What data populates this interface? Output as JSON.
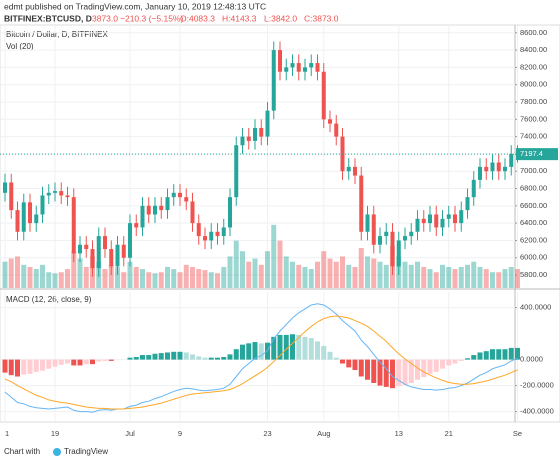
{
  "header": {
    "publisher": "edmt published on TradingView.com, January 10, 2019 12:48:13 UTC",
    "symbol": "BITFINEX:BTCUSD, D",
    "last": "3873.0",
    "change": "−210.3 (−5.15%)",
    "open": "O:4083.3",
    "high": "H:4143.3",
    "low": "L:3842.0",
    "close": "C:3873.0"
  },
  "footer": {
    "prefix": "Chart with",
    "brand": "TradingView"
  },
  "chart_data": {
    "type": "candlestick",
    "title": "Bitcoin / Dollar, D, BITFINEX",
    "volume_label": "Vol (20)",
    "categories": [
      "1",
      null,
      null,
      null,
      null,
      null,
      null,
      null,
      "19",
      null,
      null,
      null,
      null,
      null,
      null,
      null,
      null,
      null,
      null,
      null,
      "Jul",
      null,
      null,
      null,
      null,
      null,
      null,
      null,
      "9",
      null,
      null,
      null,
      null,
      null,
      null,
      null,
      null,
      null,
      null,
      null,
      null,
      null,
      "23",
      null,
      null,
      null,
      null,
      null,
      null,
      null,
      null,
      "Aug",
      null,
      null,
      null,
      null,
      null,
      null,
      null,
      null,
      null,
      null,
      null,
      "13",
      null,
      null,
      null,
      null,
      null,
      null,
      null,
      "21",
      null,
      null,
      null,
      null,
      null,
      null,
      null,
      null,
      null,
      null,
      "Se"
    ],
    "open": [
      6750,
      6870,
      6550,
      6300,
      6640,
      6400,
      6500,
      6720,
      6750,
      6770,
      6720,
      6700,
      6050,
      6150,
      6100,
      5880,
      6250,
      6100,
      5900,
      6150,
      6000,
      6400,
      6350,
      6600,
      6500,
      6600,
      6550,
      6700,
      6750,
      6700,
      6650,
      6400,
      6250,
      6200,
      6300,
      6250,
      6350,
      6700,
      7300,
      7400,
      7350,
      7500,
      7400,
      7700,
      8400,
      8150,
      8200,
      8250,
      8150,
      8200,
      8250,
      8150,
      7600,
      7550,
      7400,
      7000,
      7050,
      6950,
      6300,
      6500,
      6150,
      6250,
      6300,
      5900,
      6200,
      6250,
      6300,
      6450,
      6400,
      6500,
      6350,
      6450,
      6500,
      6400,
      6550,
      6700,
      6900,
      7050,
      7000,
      7100,
      7000,
      7050,
      7200
    ],
    "high": [
      6970,
      6970,
      6650,
      6740,
      6740,
      6600,
      6820,
      6850,
      6870,
      6870,
      6820,
      6800,
      6250,
      6250,
      6200,
      6350,
      6350,
      6200,
      6250,
      6250,
      6500,
      6500,
      6700,
      6700,
      6700,
      6700,
      6800,
      6850,
      6850,
      6800,
      6750,
      6500,
      6350,
      6400,
      6400,
      6450,
      6800,
      7400,
      7500,
      7500,
      7600,
      7600,
      7800,
      8500,
      8500,
      8300,
      8350,
      8350,
      8300,
      8350,
      8350,
      8250,
      7700,
      7650,
      7500,
      7150,
      7150,
      7050,
      6600,
      6600,
      6350,
      6400,
      6400,
      6300,
      6350,
      6400,
      6550,
      6550,
      6600,
      6600,
      6550,
      6600,
      6600,
      6650,
      6800,
      7000,
      7150,
      7150,
      7200,
      7200,
      7150,
      7300,
      7300
    ],
    "low": [
      6650,
      6450,
      6200,
      6200,
      6300,
      6300,
      6400,
      6620,
      6650,
      6620,
      6600,
      5950,
      5950,
      6000,
      5780,
      5780,
      6000,
      5800,
      5800,
      5900,
      5900,
      6250,
      6250,
      6400,
      6400,
      6450,
      6450,
      6600,
      6600,
      6550,
      6300,
      6150,
      6100,
      6100,
      6150,
      6150,
      6250,
      6600,
      7200,
      7250,
      7250,
      7300,
      7300,
      7600,
      8050,
      8050,
      8100,
      8050,
      8050,
      8100,
      8050,
      7500,
      7450,
      7300,
      6900,
      6900,
      6850,
      6200,
      6200,
      6050,
      6050,
      6150,
      5800,
      5800,
      6100,
      6150,
      6200,
      6300,
      6300,
      6250,
      6250,
      6350,
      6300,
      6300,
      6450,
      6600,
      6800,
      6900,
      6900,
      6900,
      6900,
      6950,
      7100
    ],
    "close": [
      6870,
      6550,
      6300,
      6640,
      6400,
      6500,
      6720,
      6750,
      6770,
      6720,
      6700,
      6050,
      6150,
      6100,
      5880,
      6250,
      6100,
      5900,
      6150,
      6000,
      6400,
      6350,
      6600,
      6500,
      6600,
      6550,
      6700,
      6750,
      6700,
      6650,
      6400,
      6250,
      6200,
      6300,
      6250,
      6350,
      6700,
      7300,
      7400,
      7350,
      7500,
      7400,
      7700,
      8400,
      8150,
      8200,
      8250,
      8150,
      8200,
      8250,
      8150,
      7600,
      7550,
      7400,
      7000,
      7050,
      6950,
      6300,
      6500,
      6150,
      6250,
      6300,
      5900,
      6200,
      6250,
      6300,
      6450,
      6400,
      6500,
      6350,
      6450,
      6500,
      6400,
      6550,
      6700,
      6900,
      7050,
      7000,
      7100,
      7000,
      7050,
      7200,
      7197.4
    ],
    "volume": [
      25,
      28,
      30,
      22,
      20,
      18,
      22,
      15,
      14,
      15,
      18,
      35,
      28,
      20,
      30,
      25,
      18,
      22,
      20,
      15,
      25,
      20,
      18,
      15,
      14,
      15,
      20,
      18,
      15,
      22,
      20,
      18,
      17,
      15,
      14,
      20,
      30,
      45,
      35,
      25,
      28,
      22,
      35,
      60,
      45,
      30,
      25,
      22,
      20,
      18,
      25,
      35,
      28,
      25,
      30,
      22,
      20,
      38,
      30,
      28,
      25,
      22,
      40,
      30,
      25,
      22,
      25,
      20,
      18,
      15,
      22,
      20,
      18,
      20,
      22,
      25,
      20,
      18,
      15,
      15,
      18,
      20,
      18
    ],
    "ylim": [
      5650,
      8690
    ],
    "volume_lim": [
      0,
      250
    ],
    "yticks": [
      {
        "value": 5800,
        "label": "5800.00"
      },
      {
        "value": 6000,
        "label": "6000.00"
      },
      {
        "value": 6200,
        "label": "6200.00"
      },
      {
        "value": 6400,
        "label": "6400.00"
      },
      {
        "value": 6600,
        "label": "6600.00"
      },
      {
        "value": 6800,
        "label": "6800.00"
      },
      {
        "value": 7000,
        "label": "7000.00"
      },
      {
        "value": 7200,
        "label": "7200.00"
      },
      {
        "value": 7400,
        "label": "7400.00"
      },
      {
        "value": 7600,
        "label": "7600.00"
      },
      {
        "value": 7800,
        "label": "7800.00"
      },
      {
        "value": 8000,
        "label": "8000.00"
      },
      {
        "value": 8200,
        "label": "8200.00"
      },
      {
        "value": 8400,
        "label": "8400.00"
      },
      {
        "value": 8600,
        "label": "8600.00"
      }
    ],
    "grid": true,
    "up_color": "#26a69a",
    "down_color": "#ef5350",
    "macd": {
      "title": "MACD (12, 26, close, 9)",
      "ylim": [
        -480,
        520
      ],
      "yticks": [
        {
          "value": -400,
          "label": "-400.0000"
        },
        {
          "value": -200,
          "label": "-200.0000"
        },
        {
          "value": 0,
          "label": "0.0000"
        },
        {
          "value": 400,
          "label": "400.0000"
        }
      ],
      "histogram": [
        -100,
        -120,
        -130,
        -115,
        -110,
        -95,
        -85,
        -70,
        -55,
        -40,
        -30,
        -45,
        -45,
        -35,
        -35,
        -15,
        -10,
        -10,
        0,
        0,
        15,
        20,
        35,
        35,
        45,
        50,
        55,
        60,
        60,
        55,
        40,
        25,
        15,
        15,
        15,
        20,
        40,
        80,
        115,
        125,
        135,
        125,
        130,
        175,
        190,
        190,
        195,
        190,
        175,
        165,
        140,
        105,
        60,
        15,
        -30,
        -60,
        -80,
        -130,
        -155,
        -180,
        -200,
        -210,
        -220,
        -205,
        -195,
        -180,
        -155,
        -135,
        -110,
        -95,
        -70,
        -45,
        -30,
        -10,
        10,
        35,
        55,
        65,
        80,
        80,
        80,
        90,
        90
      ],
      "macd": [
        -250,
        -290,
        -330,
        -340,
        -360,
        -370,
        -375,
        -380,
        -375,
        -370,
        -365,
        -390,
        -400,
        -400,
        -405,
        -390,
        -385,
        -390,
        -380,
        -380,
        -360,
        -350,
        -330,
        -320,
        -300,
        -285,
        -265,
        -245,
        -230,
        -220,
        -225,
        -235,
        -240,
        -235,
        -230,
        -220,
        -190,
        -130,
        -70,
        -30,
        10,
        30,
        70,
        160,
        220,
        270,
        320,
        360,
        390,
        420,
        430,
        420,
        390,
        350,
        300,
        260,
        220,
        150,
        100,
        40,
        -20,
        -70,
        -130,
        -160,
        -190,
        -210,
        -220,
        -230,
        -230,
        -235,
        -230,
        -220,
        -215,
        -200,
        -180,
        -150,
        -120,
        -100,
        -70,
        -55,
        -40,
        -10,
        10
      ],
      "signal": [
        -150,
        -170,
        -200,
        -225,
        -250,
        -275,
        -290,
        -310,
        -320,
        -330,
        -335,
        -345,
        -355,
        -365,
        -370,
        -375,
        -375,
        -380,
        -380,
        -380,
        -375,
        -370,
        -365,
        -355,
        -345,
        -335,
        -320,
        -305,
        -290,
        -275,
        -265,
        -260,
        -255,
        -250,
        -245,
        -240,
        -230,
        -210,
        -185,
        -155,
        -125,
        -95,
        -60,
        -15,
        30,
        80,
        125,
        170,
        215,
        255,
        290,
        315,
        330,
        335,
        330,
        320,
        300,
        280,
        255,
        220,
        180,
        140,
        90,
        45,
        5,
        -30,
        -65,
        -95,
        -120,
        -140,
        -160,
        -175,
        -185,
        -190,
        -190,
        -185,
        -175,
        -165,
        -150,
        -135,
        -120,
        -100,
        -80
      ],
      "macd_color": "#64b5f6",
      "signal_color": "#ffa726"
    }
  }
}
